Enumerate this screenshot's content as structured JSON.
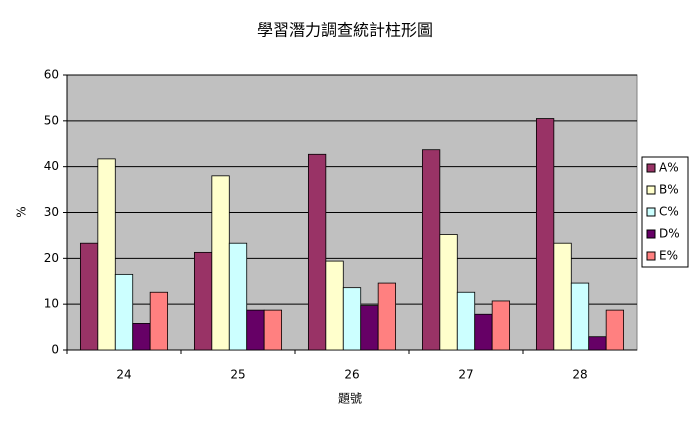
{
  "chart_data": {
    "type": "bar",
    "title": "學習潛力調查統計柱形圖",
    "x_label": "題號",
    "y_label": "%",
    "categories": [
      "24",
      "25",
      "26",
      "27",
      "28"
    ],
    "series": [
      {
        "name": "A%",
        "color": "#993366",
        "values": [
          23.3,
          21.3,
          42.7,
          43.7,
          50.5
        ]
      },
      {
        "name": "B%",
        "color": "#ffffcc",
        "values": [
          41.7,
          38,
          19.4,
          25.2,
          23.3
        ]
      },
      {
        "name": "C%",
        "color": "#ccffff",
        "values": [
          16.5,
          23.3,
          13.6,
          12.6,
          14.6
        ]
      },
      {
        "name": "D%",
        "color": "#660066",
        "values": [
          5.8,
          8.7,
          9.7,
          7.8,
          2.9
        ]
      },
      {
        "name": "E%",
        "color": "#ff8080",
        "values": [
          12.6,
          8.7,
          14.6,
          10.7,
          8.7
        ]
      }
    ],
    "ylim": [
      0,
      60
    ],
    "yticks": [
      0,
      10,
      20,
      30,
      40,
      50,
      60
    ],
    "grid": true,
    "legend": "right"
  }
}
